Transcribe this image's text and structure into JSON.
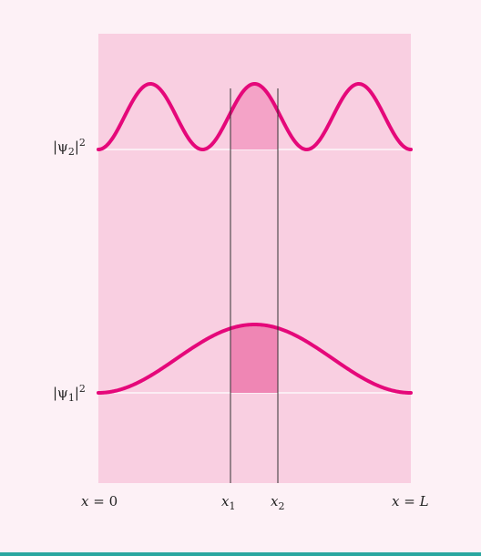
{
  "labels": {
    "psi2": {
      "pre": "|ψ",
      "sub": "2",
      "post": "|",
      "sup": "2"
    },
    "psi1": {
      "pre": "|ψ",
      "sub": "1",
      "post": "|",
      "sup": "2"
    },
    "x0": {
      "var": "x",
      "rest": " = 0"
    },
    "x1": {
      "var": "x",
      "sub": "1"
    },
    "x2": {
      "var": "x",
      "sub": "2"
    },
    "xL": {
      "var": "x",
      "mid": " = ",
      "end": "L"
    }
  },
  "colors": {
    "panel": "#f9cfe1",
    "curve": "#e5087a",
    "shade": "#ef86b4",
    "shade_light": "#f4a3c7",
    "baseline": "#ffffff",
    "marker_line": "#333333"
  }
}
